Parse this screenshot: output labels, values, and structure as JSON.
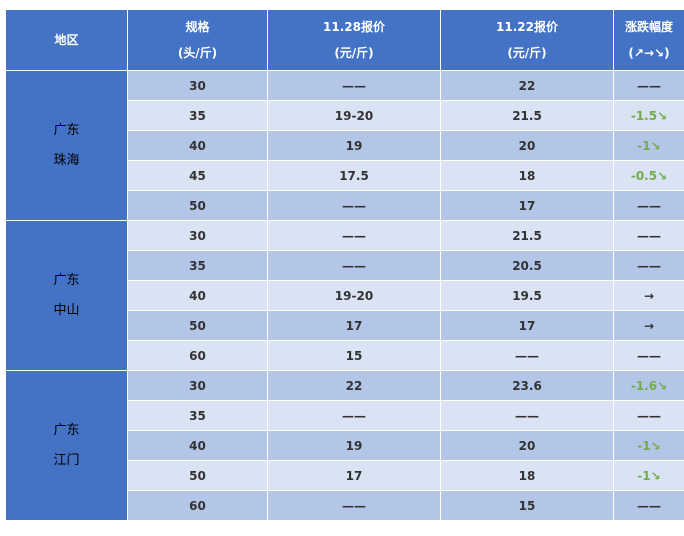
{
  "header": {
    "region": "地区",
    "spec": [
      "规格",
      "(头/斤)"
    ],
    "price_new": [
      "11.28报价",
      "(元/斤)"
    ],
    "price_old": [
      "11.22报价",
      "(元/斤)"
    ],
    "change": [
      "涨跌幅度",
      "(↗→↘)"
    ]
  },
  "colors": {
    "header_bg": "#4472c4",
    "row_dark": "#b4c6e7",
    "row_light": "#dae3f3",
    "down": "#70ad47"
  },
  "groups": [
    {
      "region": [
        "广东",
        "珠海"
      ],
      "rows": [
        {
          "spec": "30",
          "p1": "——",
          "p2": "22",
          "chg": "——"
        },
        {
          "spec": "35",
          "p1": "19-20",
          "p2": "21.5",
          "chg": "-1.5↘"
        },
        {
          "spec": "40",
          "p1": "19",
          "p2": "20",
          "chg": "-1↘"
        },
        {
          "spec": "45",
          "p1": "17.5",
          "p2": "18",
          "chg": "-0.5↘"
        },
        {
          "spec": "50",
          "p1": "——",
          "p2": "17",
          "chg": "——"
        }
      ]
    },
    {
      "region": [
        "广东",
        "中山"
      ],
      "rows": [
        {
          "spec": "30",
          "p1": "——",
          "p2": "21.5",
          "chg": "——"
        },
        {
          "spec": "35",
          "p1": "——",
          "p2": "20.5",
          "chg": "——"
        },
        {
          "spec": "40",
          "p1": "19-20",
          "p2": "19.5",
          "chg": "→"
        },
        {
          "spec": "50",
          "p1": "17",
          "p2": "17",
          "chg": "→"
        },
        {
          "spec": "60",
          "p1": "15",
          "p2": "——",
          "chg": "——"
        }
      ]
    },
    {
      "region": [
        "广东",
        "江门"
      ],
      "rows": [
        {
          "spec": "30",
          "p1": "22",
          "p2": "23.6",
          "chg": "-1.6↘"
        },
        {
          "spec": "35",
          "p1": "——",
          "p2": "——",
          "chg": "——"
        },
        {
          "spec": "40",
          "p1": "19",
          "p2": "20",
          "chg": "-1↘"
        },
        {
          "spec": "50",
          "p1": "17",
          "p2": "18",
          "chg": "-1↘"
        },
        {
          "spec": "60",
          "p1": "——",
          "p2": "15",
          "chg": "——"
        }
      ]
    }
  ]
}
